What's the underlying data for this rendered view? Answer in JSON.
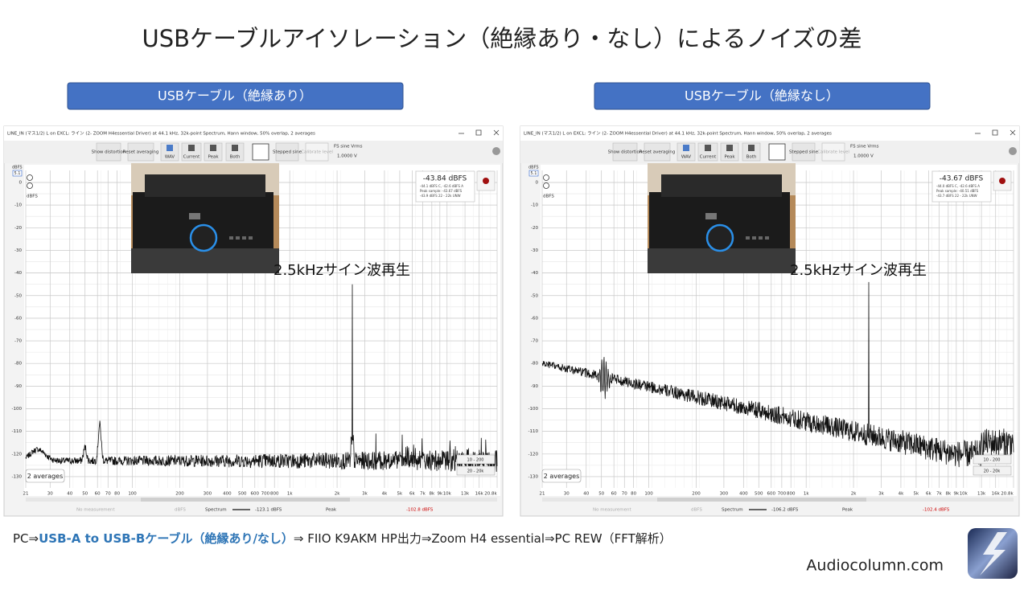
{
  "title": "USBケーブルアイソレーション（絶縁あり・なし）によるノイズの差",
  "panels": [
    {
      "label": "USBケーブル（絶縁あり）",
      "window_title": "LINE_IN (マス1/2) L on EXCL: ライン (2- ZOOM H4essential Driver) at 44.1 kHz, 32k-point Spectrum, Hann window, 50% overlap, 2 averages",
      "toolbar": [
        "Show distortion",
        "Reset averaging",
        "WAV",
        "Current",
        "Peak",
        "Both",
        "Stepped sine",
        "Calibrate level",
        "FS sine Vrms",
        "1.0000 V"
      ],
      "y_unit": "dBFS",
      "y_top": "5.1",
      "y_select": "dBFS",
      "y_ticks": [
        "0",
        "-10",
        "-20",
        "-30",
        "-40",
        "-50",
        "-60",
        "-70",
        "-80",
        "-90",
        "-100",
        "-110",
        "-120",
        "-130"
      ],
      "x_ticks": [
        "21",
        "30",
        "40",
        "50",
        "60",
        "70",
        "80",
        "100",
        "200",
        "300",
        "400",
        "500",
        "600",
        "700",
        "800",
        "1k",
        "2k",
        "3k",
        "4k",
        "5k",
        "6k",
        "7k",
        "8k",
        "9k",
        "10k",
        "13k",
        "16k",
        "20.8k"
      ],
      "reading": "-43.84 dBFS",
      "reading_lines": [
        "-44.1 dBFS C, -42.6 dBFS A",
        "Peak sample: -43.67 dBFS",
        "-43.9 dBFS 22 - 22k UNW"
      ],
      "annotation": "2.5kHzサイン波再生",
      "averages": "2 averages",
      "ranges": [
        "10 - 200",
        "20 - 20k"
      ],
      "status": [
        "No measurement",
        "dBFS",
        "Spectrum",
        "-123.1 dBFS",
        "Peak",
        "-102.8 dBFS"
      ]
    },
    {
      "label": "USBケーブル（絶縁なし）",
      "window_title": "LINE_IN (マス1/2) L on EXCL: ライン (2- ZOOM H4essential Driver) at 44.1 kHz, 32k-point Spectrum, Hann window, 50% overlap, 2 averages",
      "toolbar": [
        "Show distortion",
        "Reset averaging",
        "WAV",
        "Current",
        "Peak",
        "Both",
        "Stepped sine",
        "Calibrate level",
        "FS sine Vrms",
        "1.0000 V"
      ],
      "y_unit": "dBFS",
      "y_top": "5.1",
      "y_select": "dBFS",
      "y_ticks": [
        "0",
        "-10",
        "-20",
        "-30",
        "-40",
        "-50",
        "-60",
        "-70",
        "-80",
        "-90",
        "-100",
        "-110",
        "-120",
        "-130"
      ],
      "x_ticks": [
        "21",
        "30",
        "40",
        "50",
        "60",
        "70",
        "80",
        "100",
        "200",
        "300",
        "400",
        "500",
        "600",
        "700",
        "800",
        "1k",
        "2k",
        "3k",
        "4k",
        "5k",
        "6k",
        "7k",
        "8k",
        "9k",
        "10k",
        "13k",
        "16k",
        "20.8k"
      ],
      "reading": "-43.67 dBFS",
      "reading_lines": [
        "-44.0 dBFS C, -42.6 dBFS A",
        "Peak sample: -40.51 dBFS",
        "-43.7 dBFS 22 - 22k UNW"
      ],
      "annotation": "2.5kHzサイン波再生",
      "averages": "2 averages",
      "ranges": [
        "10 - 200",
        "20 - 20k"
      ],
      "status": [
        "No measurement",
        "dBFS",
        "Spectrum",
        "-106.2 dBFS",
        "Peak",
        "-102.4 dBFS"
      ]
    }
  ],
  "footer": {
    "caption_a": "PC⇒",
    "caption_b": "USB-A to USB-Bケーブル（絶縁あり/なし）",
    "caption_c": "⇒ FIIO K9AKM HP出力⇒Zoom H4 essential⇒PC REW（FFT解析）",
    "site": "Audiocolumn.com"
  }
}
